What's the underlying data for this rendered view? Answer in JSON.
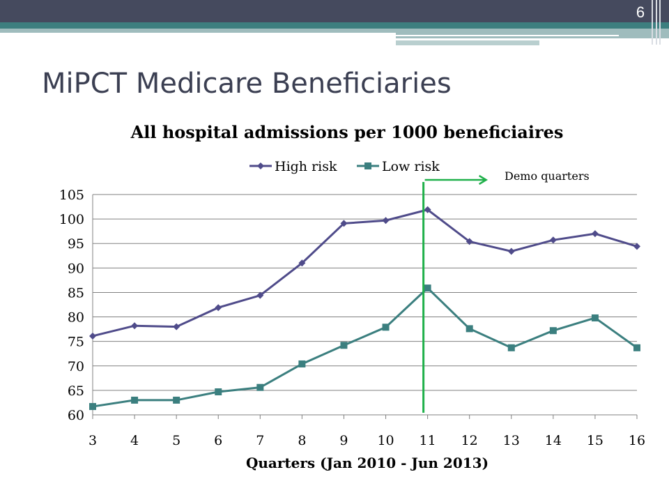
{
  "slide": {
    "number": "6",
    "title": "MiPCT Medicare Beneficiaries"
  },
  "colors": {
    "header_dark": "#454a5e",
    "header_teal": "#3d7f7f",
    "header_light": "#9fbcbd",
    "high_risk": "#4f4b8a",
    "low_risk": "#3b7f7f",
    "marker_line": "#1fb04a",
    "grid": "#808080"
  },
  "chart_data": {
    "type": "line",
    "title": "All hospital admissions per 1000 beneficiaires",
    "xlabel": "Quarters (Jan 2010 - Jun 2013)",
    "ylabel": "",
    "categories": [
      "3",
      "4",
      "5",
      "6",
      "7",
      "8",
      "9",
      "10",
      "11",
      "12",
      "13",
      "14",
      "15",
      "16"
    ],
    "ylim": [
      60,
      105
    ],
    "yticks": [
      "60",
      "65",
      "70",
      "75",
      "80",
      "85",
      "90",
      "95",
      "100",
      "105"
    ],
    "grid": true,
    "legend_position": "top",
    "series": [
      {
        "name": "High risk",
        "marker": "diamond",
        "values": [
          76.1,
          78.2,
          78.0,
          81.9,
          84.4,
          91.0,
          99.1,
          99.7,
          101.9,
          95.4,
          93.4,
          95.7,
          97.0,
          94.4
        ]
      },
      {
        "name": "Low risk",
        "marker": "square",
        "values": [
          61.7,
          63.0,
          63.0,
          64.7,
          65.6,
          70.4,
          74.2,
          77.9,
          85.9,
          77.6,
          73.7,
          77.2,
          79.8,
          73.7
        ]
      }
    ],
    "annotation": {
      "label": "Demo quarters",
      "at_category": "11",
      "arrow": "right"
    }
  }
}
